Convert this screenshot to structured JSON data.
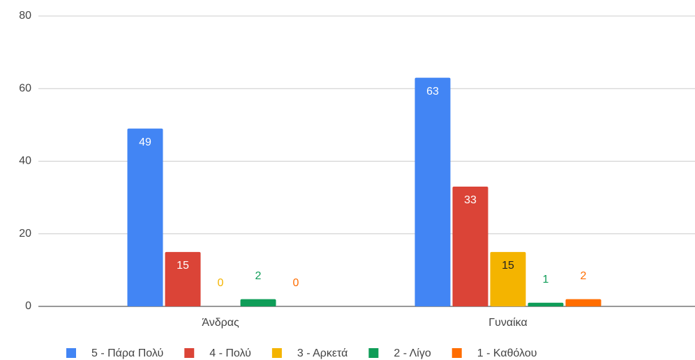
{
  "chart_data": {
    "type": "bar",
    "categories": [
      "Άνδρας",
      "Γυναίκα"
    ],
    "series": [
      {
        "name": "5 - Πάρα Πολύ",
        "color": "#4285f4",
        "values": [
          49,
          63
        ]
      },
      {
        "name": "4 - Πολύ",
        "color": "#db4437",
        "values": [
          15,
          33
        ]
      },
      {
        "name": "3 - Αρκετά",
        "color": "#f4b400",
        "values": [
          0,
          15
        ]
      },
      {
        "name": "2 - Λίγο",
        "color": "#0f9d58",
        "values": [
          2,
          1
        ]
      },
      {
        "name": "1 - Καθόλου",
        "color": "#ff6d01",
        "values": [
          0,
          2
        ]
      }
    ],
    "ylim": [
      0,
      80
    ],
    "yticks": [
      0,
      20,
      40,
      60,
      80
    ],
    "grid": true,
    "legend": "bottom"
  }
}
